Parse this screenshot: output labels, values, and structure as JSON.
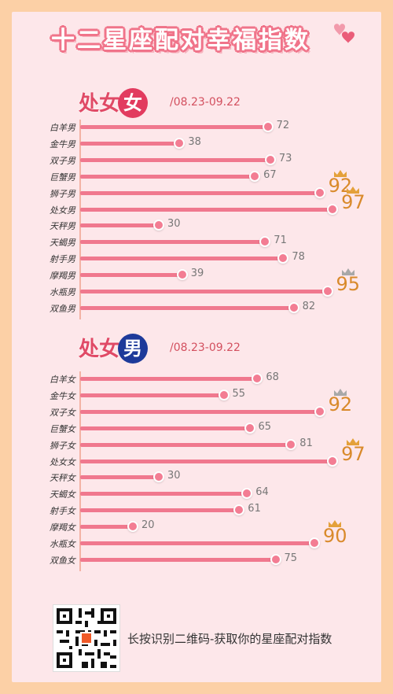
{
  "title": "十二星座配对幸福指数",
  "colors": {
    "background": "#fcd0a6",
    "card": "#fde7ea",
    "bar": "#f0788e",
    "highlight": "#d98a2b",
    "female_badge": "#e23b5f",
    "male_badge": "#1d3a9a",
    "crown_gold": "#e4a13a",
    "crown_silver": "#a8a8a8"
  },
  "sections": [
    {
      "label": "处女",
      "badge": "女",
      "date": "/08.23-09.22"
    },
    {
      "label": "处女",
      "badge": "男",
      "date": "/08.23-09.22"
    }
  ],
  "chart_data": [
    {
      "type": "bar",
      "categories": [
        "白羊男",
        "金牛男",
        "双子男",
        "巨蟹男",
        "狮子男",
        "处女男",
        "天秤男",
        "天蝎男",
        "射手男",
        "摩羯男",
        "水瓶男",
        "双鱼男"
      ],
      "values": [
        72,
        38,
        73,
        67,
        92,
        97,
        30,
        71,
        78,
        39,
        95,
        82
      ],
      "value_labels": [
        "72",
        "38",
        "73",
        "67",
        "92",
        "97",
        "30",
        "71",
        "78",
        "39",
        "95",
        "82"
      ],
      "highlights": [
        {
          "category": "狮子男",
          "crown": "gold"
        },
        {
          "category": "处女男",
          "crown": "gold"
        },
        {
          "category": "水瓶男",
          "crown": "silver"
        }
      ],
      "title": "",
      "xlim": [
        0,
        100
      ]
    },
    {
      "type": "bar",
      "categories": [
        "白羊女",
        "金牛女",
        "双子女",
        "巨蟹女",
        "狮子女",
        "处女女",
        "天秤女",
        "天蝎女",
        "射手女",
        "摩羯女",
        "水瓶女",
        "双鱼女"
      ],
      "values": [
        68,
        55,
        92,
        65,
        81,
        97,
        30,
        64,
        61,
        20,
        90,
        75
      ],
      "value_labels": [
        "68",
        "55",
        "92",
        "65",
        "81",
        "97",
        "30",
        "64",
        "61",
        "20",
        "90",
        "75"
      ],
      "highlights": [
        {
          "category": "双子女",
          "crown": "silver"
        },
        {
          "category": "处女女",
          "crown": "gold"
        },
        {
          "category": "水瓶女",
          "crown": "gold"
        }
      ],
      "title": "",
      "xlim": [
        0,
        100
      ]
    }
  ],
  "footer": {
    "cta": "长按识别二维码-获取你的星座配对指数",
    "qr_icon": "qr-code-icon"
  }
}
